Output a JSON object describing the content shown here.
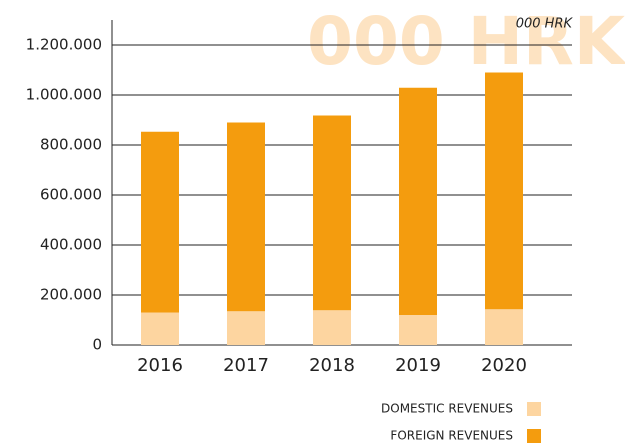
{
  "chart_data": {
    "type": "bar",
    "stacked": true,
    "watermark": "000 HRK",
    "unit_label": "000 HRK",
    "categories": [
      "2016",
      "2017",
      "2018",
      "2019",
      "2020"
    ],
    "series": [
      {
        "name": "DOMESTIC REVENUES",
        "color": "#fdd5a0",
        "values": [
          130000,
          135000,
          139000,
          120000,
          143000
        ]
      },
      {
        "name": "FOREIGN REVENUES",
        "color": "#f49c0e",
        "values": [
          723000,
          755000,
          779000,
          909000,
          947000
        ]
      }
    ],
    "ylim": [
      0,
      1300000
    ],
    "yticks": [
      0,
      {
        "value": 200000,
        "label": "200.000"
      },
      {
        "value": 400000,
        "label": "400.000"
      },
      {
        "value": 600000,
        "label": "600.000"
      },
      {
        "value": 800000,
        "label": "800.000"
      },
      {
        "value": 1000000,
        "label": "1.000.000"
      },
      {
        "value": 1200000,
        "label": "1.200.000"
      }
    ],
    "grid": true
  }
}
